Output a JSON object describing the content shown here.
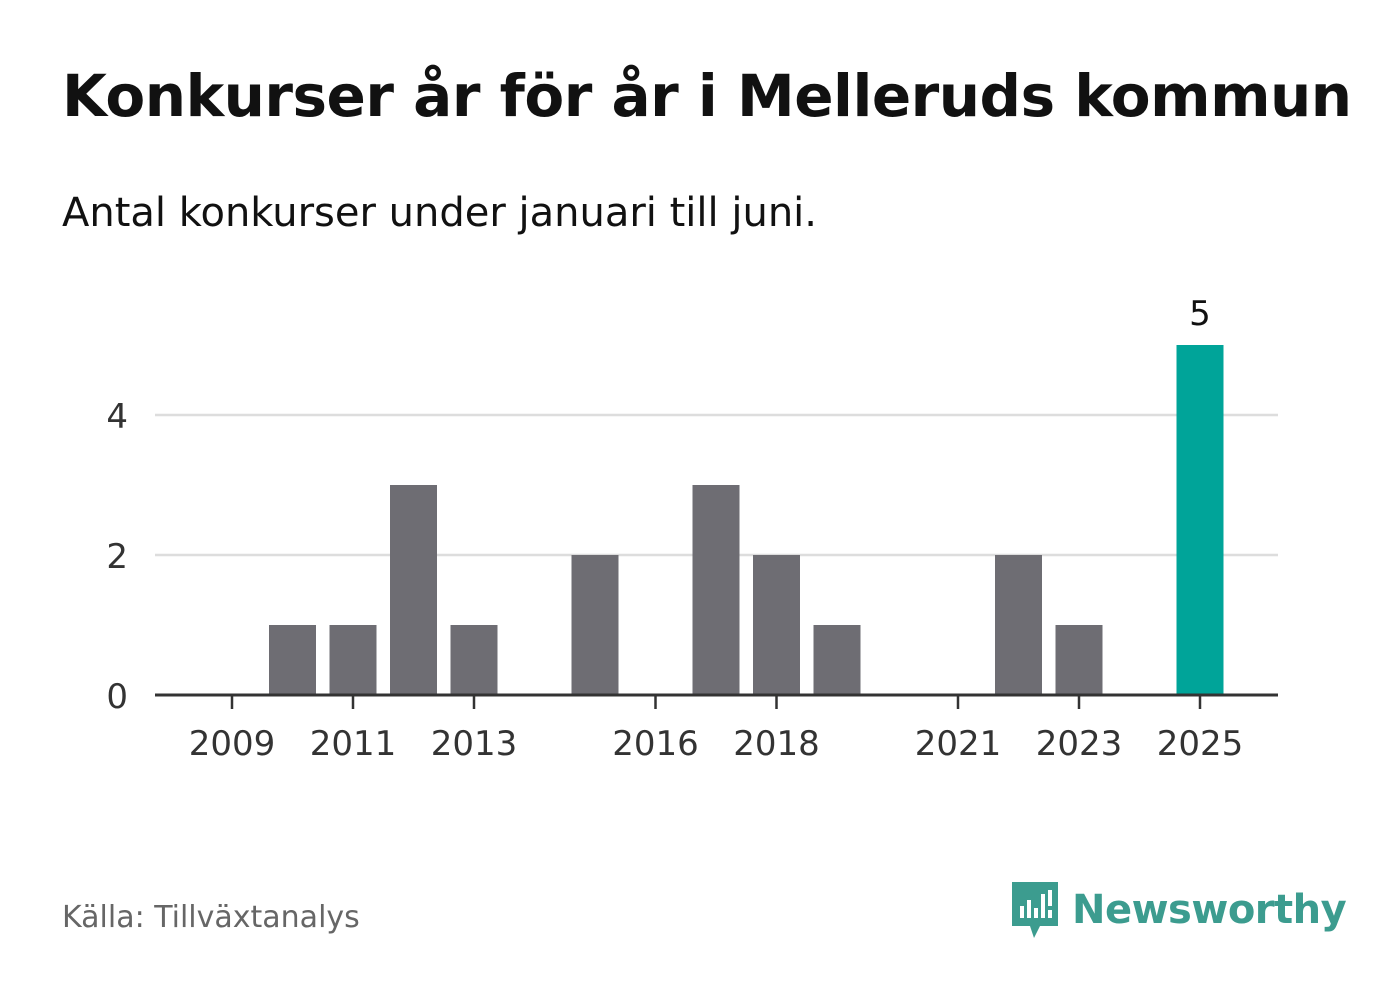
{
  "title": "Konkurser år för år i Melleruds kommun",
  "subtitle": "Antal konkurser under januari till juni.",
  "source": "Källa: Tillväxtanalys",
  "logo": {
    "text": "Newsworthy",
    "icon": "newsworthy-bar-chart-icon"
  },
  "colors": {
    "bar": "#6e6d73",
    "highlight": "#00a499",
    "grid": "#dddddd",
    "axis": "#333333",
    "logo": "#3c9c8f"
  },
  "chart_data": {
    "type": "bar",
    "categories": [
      "2009",
      "2010",
      "2011",
      "2012",
      "2013",
      "2014",
      "2015",
      "2016",
      "2017",
      "2018",
      "2019",
      "2020",
      "2021",
      "2022",
      "2023",
      "2024",
      "2025"
    ],
    "values": [
      0,
      1,
      1,
      3,
      1,
      0,
      2,
      0,
      3,
      2,
      1,
      0,
      0,
      2,
      1,
      0,
      5
    ],
    "highlight_index": 16,
    "data_labels": [
      {
        "index": 16,
        "text": "5"
      }
    ],
    "xtick_labels": [
      "2009",
      "2011",
      "2013",
      "2016",
      "2018",
      "2021",
      "2023",
      "2025"
    ],
    "yticks": [
      0,
      2,
      4
    ],
    "ylim": [
      0,
      5
    ],
    "grid": true,
    "xlabel": "",
    "ylabel": ""
  }
}
